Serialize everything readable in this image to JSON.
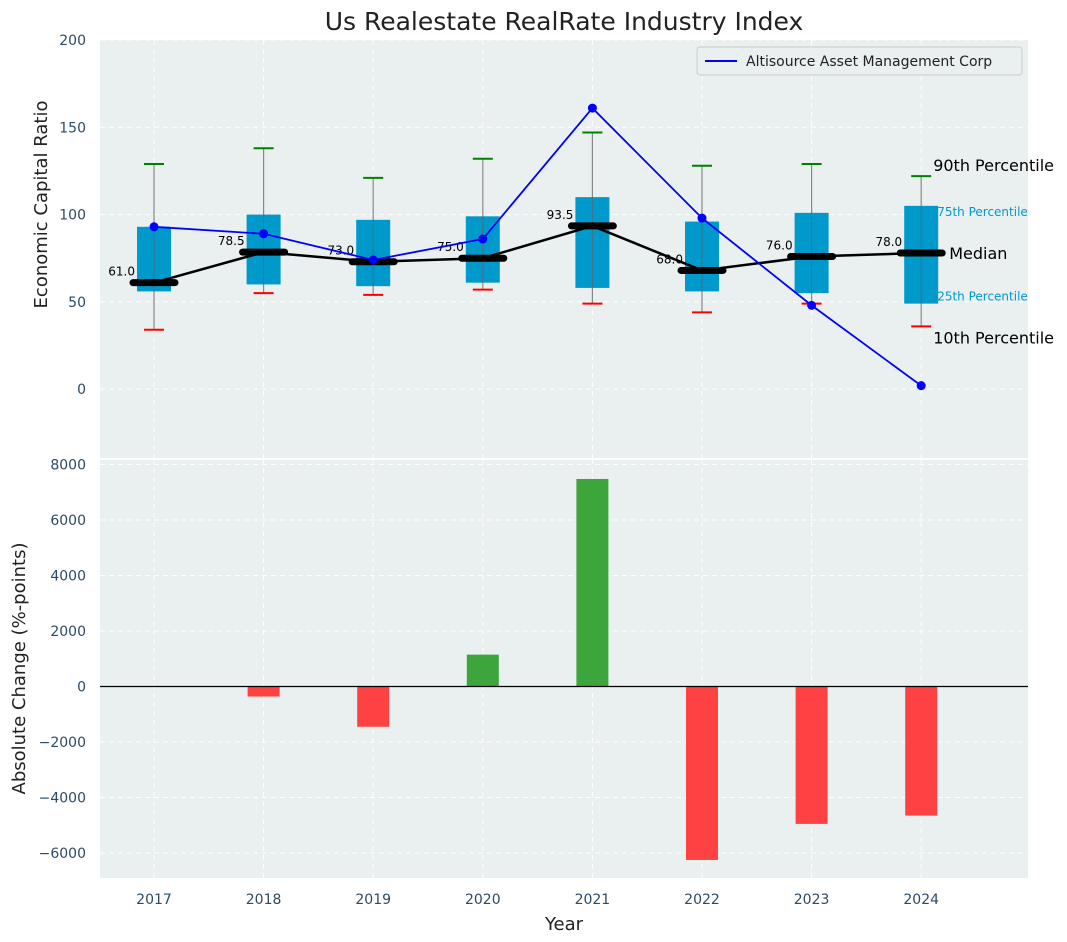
{
  "chart_data": [
    {
      "type": "box",
      "title": "Us Realestate RealRate Industry Index",
      "ylabel": "Economic Capital Ratio",
      "ylim": [
        -40,
        200
      ],
      "yticks": [
        0,
        50,
        100,
        150,
        200
      ],
      "grid": true,
      "years": [
        "2017",
        "2018",
        "2019",
        "2020",
        "2021",
        "2022",
        "2023",
        "2024"
      ],
      "percentiles": {
        "p10": [
          34,
          55,
          54,
          57,
          49,
          44,
          49,
          36
        ],
        "p25": [
          56,
          60,
          59,
          61,
          58,
          56,
          55,
          49
        ],
        "median": [
          61.0,
          78.5,
          73.0,
          75.0,
          93.5,
          68.0,
          76.0,
          78.0
        ],
        "p75": [
          93,
          100,
          97,
          99,
          110,
          96,
          101,
          105
        ],
        "p90": [
          129,
          138,
          121,
          132,
          147,
          128,
          129,
          122
        ]
      },
      "median_labels": [
        "61.0",
        "78.5",
        "73.0",
        "75.0",
        "93.5",
        "68.0",
        "76.0",
        "78.0"
      ],
      "series": [
        {
          "name": "Altisource Asset Management Corp",
          "values": [
            93,
            89,
            74,
            86,
            161,
            98,
            48,
            2
          ],
          "color": "#0000ff"
        }
      ],
      "legend_position": "top-right",
      "annotations": {
        "p90": "90th Percentile",
        "p75": "75th Percentile",
        "median": "Median",
        "p25": "25th Percentile",
        "p10": "10th Percentile"
      },
      "colors": {
        "box": "#0099cc",
        "median": "#000000",
        "p90_cap": "#008000",
        "p10_cap": "#ff0000",
        "background": "#eaeff0"
      }
    },
    {
      "type": "bar",
      "xlabel": "Year",
      "ylabel": "Absolute Change (%-points)",
      "ylim": [
        -6900,
        8200
      ],
      "yticks": [
        -6000,
        -4000,
        -2000,
        0,
        2000,
        4000,
        6000,
        8000
      ],
      "ytick_labels": [
        "−6000",
        "−4000",
        "−2000",
        "0",
        "2000",
        "4000",
        "6000",
        "8000"
      ],
      "categories": [
        "2017",
        "2018",
        "2019",
        "2020",
        "2021",
        "2022",
        "2023",
        "2024"
      ],
      "values": [
        0,
        -360,
        -1450,
        1150,
        7480,
        -6250,
        -4950,
        -4650
      ],
      "grid": true,
      "colors": {
        "positive": "#2ca02c",
        "negative": "#ff3333"
      }
    }
  ]
}
